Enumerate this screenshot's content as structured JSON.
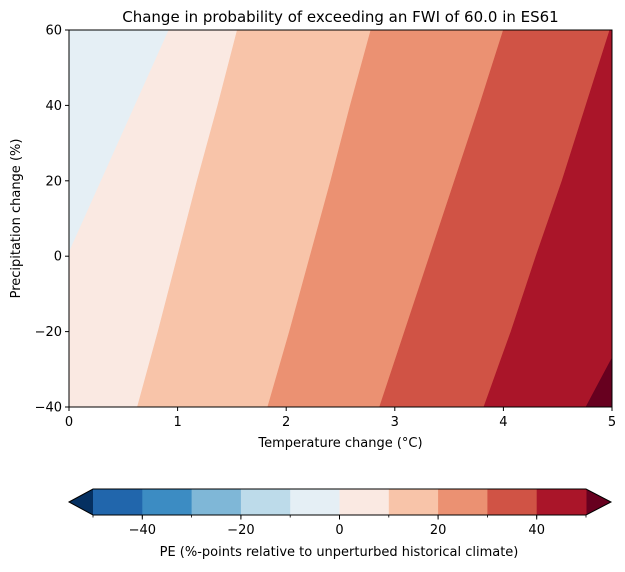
{
  "chart_data": {
    "type": "heatmap",
    "title": "Change in probability of exceeding an FWI of 60.0 in ES61",
    "xlabel": "Temperature change (°C)",
    "ylabel": "Precipitation change (%)",
    "xlim": [
      0,
      5
    ],
    "ylim": [
      -40,
      60
    ],
    "xticks": [
      "0",
      "1",
      "2",
      "3",
      "4",
      "5"
    ],
    "yticks": [
      "−40",
      "−20",
      "0",
      "20",
      "40",
      "60"
    ],
    "levels": [
      -50,
      -40,
      -30,
      -20,
      -10,
      0,
      10,
      20,
      30,
      40,
      50
    ],
    "level_colors": [
      "#2166ac",
      "#3c8cc3",
      "#7fb7d7",
      "#bddbea",
      "#e5eff5",
      "#fae9e2",
      "#f8c4a9",
      "#eb9172",
      "#d05345",
      "#aa1529"
    ],
    "under_color": "#053061",
    "over_color": "#67001f",
    "contour_boundaries": [
      {
        "level": 0,
        "points": [
          [
            0,
            1
          ],
          [
            0.92,
            60
          ]
        ]
      },
      {
        "level": 10,
        "points": [
          [
            0.63,
            -40
          ],
          [
            0.82,
            -20
          ],
          [
            1.0,
            0
          ],
          [
            1.18,
            20
          ],
          [
            1.37,
            40
          ],
          [
            1.55,
            60
          ]
        ]
      },
      {
        "level": 20,
        "points": [
          [
            1.83,
            -40
          ],
          [
            2.03,
            -20
          ],
          [
            2.22,
            0
          ],
          [
            2.41,
            20
          ],
          [
            2.59,
            40
          ],
          [
            2.78,
            60
          ]
        ]
      },
      {
        "level": 30,
        "points": [
          [
            2.86,
            -40
          ],
          [
            3.09,
            -20
          ],
          [
            3.32,
            0
          ],
          [
            3.55,
            20
          ],
          [
            3.78,
            40
          ],
          [
            4.0,
            60
          ]
        ]
      },
      {
        "level": 40,
        "points": [
          [
            3.82,
            -40
          ],
          [
            4.07,
            -20
          ],
          [
            4.3,
            0
          ],
          [
            4.54,
            20
          ],
          [
            4.76,
            40
          ],
          [
            4.98,
            60
          ]
        ]
      },
      {
        "level": 50,
        "points": [
          [
            4.76,
            -40
          ],
          [
            5.0,
            -27
          ]
        ]
      }
    ],
    "colorbar": {
      "label": "PE (%-points relative to unperturbed historical climate)",
      "tick_values": [
        -40,
        -20,
        0,
        20,
        40
      ],
      "tick_labels": [
        "−40",
        "−20",
        "0",
        "20",
        "40"
      ]
    }
  }
}
